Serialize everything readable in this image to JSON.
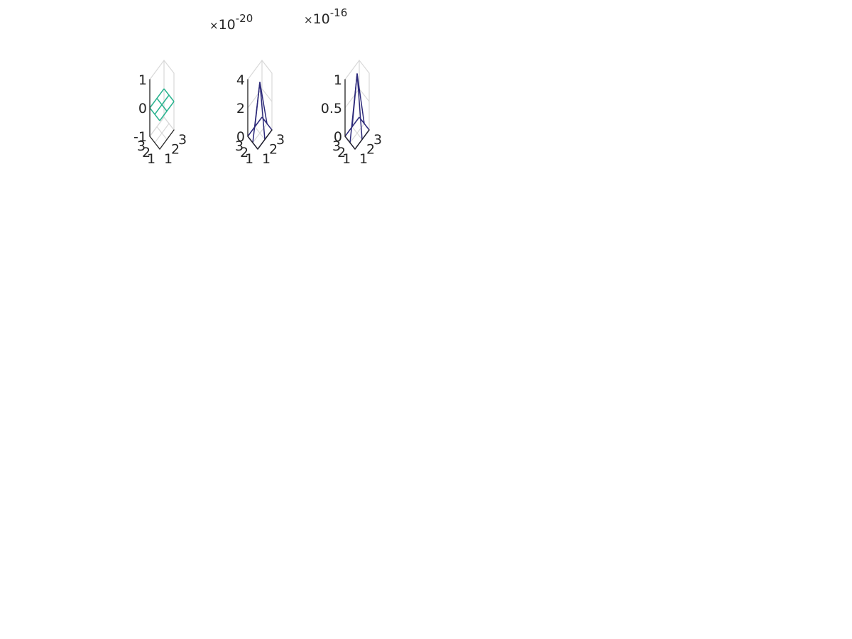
{
  "figure": {
    "background": "#ffffff",
    "grid_color": "#d9d9d9",
    "axis_color": "#262626"
  },
  "chart_data": [
    {
      "type": "surface",
      "panel": 1,
      "mesh_style": "wireframe",
      "x": [
        1,
        2,
        3
      ],
      "y": [
        1,
        2,
        3
      ],
      "xticks": [
        "1",
        "2",
        "3"
      ],
      "yticks": [
        "1",
        "2",
        "3"
      ],
      "zticks": [
        "-1",
        "0",
        "1"
      ],
      "zlim": [
        -1,
        1
      ],
      "exponent": "",
      "color": "#2ab38f",
      "z": [
        [
          0,
          0,
          0
        ],
        [
          0,
          0,
          0
        ],
        [
          0,
          0,
          0
        ]
      ]
    },
    {
      "type": "surface",
      "panel": 2,
      "mesh_style": "wireframe",
      "x": [
        1,
        2,
        3
      ],
      "y": [
        1,
        2,
        3
      ],
      "xticks": [
        "1",
        "2",
        "3"
      ],
      "yticks": [
        "1",
        "2",
        "3"
      ],
      "zticks": [
        "0",
        "2",
        "4"
      ],
      "zlim": [
        0,
        4
      ],
      "exponent": "-20",
      "color": "#2d2a7a",
      "z": [
        [
          0,
          0,
          0
        ],
        [
          0,
          3.6,
          0
        ],
        [
          0,
          0,
          0
        ]
      ]
    },
    {
      "type": "surface",
      "panel": 3,
      "mesh_style": "wireframe",
      "x": [
        1,
        2,
        3
      ],
      "y": [
        1,
        2,
        3
      ],
      "xticks": [
        "1",
        "2",
        "3"
      ],
      "yticks": [
        "1",
        "2",
        "3"
      ],
      "zticks": [
        "0",
        "0.5",
        "1"
      ],
      "zlim": [
        0,
        1
      ],
      "exponent": "-16",
      "color": "#2d2a7a",
      "z": [
        [
          0,
          0,
          0
        ],
        [
          0,
          1.05,
          0
        ],
        [
          0,
          0,
          0
        ]
      ]
    }
  ]
}
